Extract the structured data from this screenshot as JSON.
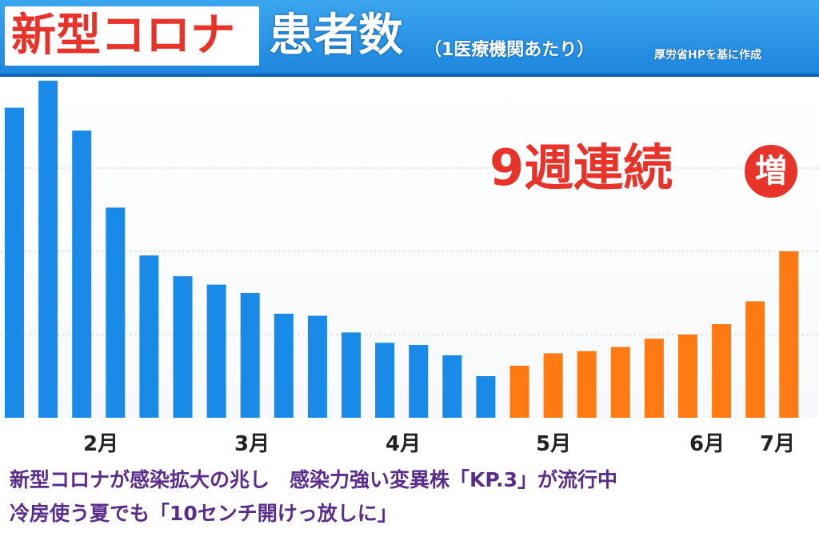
{
  "header": {
    "title_red": "新型コロナ",
    "title_white": "患者数",
    "subtitle": "（1医療機関あたり）",
    "source": "厚労省HPを基に作成"
  },
  "banner": {
    "text": "9週連続",
    "circle": "増"
  },
  "caption": {
    "line1": "新型コロナが感染拡大の兆し　感染力強い変異株「KP.3」が流行中",
    "line2": "冷房使う夏でも「10センチ開けっ放しに」"
  },
  "colors": {
    "blue": "#1a8ae8",
    "orange": "#ff7a12",
    "red": "#e8332a",
    "caption": "#5a2d8c"
  },
  "chart_data": {
    "type": "bar",
    "title": "新型コロナ患者数（1医療機関あたり）",
    "x_tick_labels": [
      "2月",
      "3月",
      "4月",
      "5月",
      "6月",
      "7月"
    ],
    "ylim": [
      0,
      16
    ],
    "grid": true,
    "series": [
      {
        "color": "#1a8ae8",
        "values": [
          14.9,
          16.2,
          13.8,
          10.1,
          7.8,
          6.8,
          6.4,
          6.0,
          5.0,
          4.9,
          4.1,
          3.6,
          3.5,
          3.0,
          2.0
        ]
      },
      {
        "color": "#ff7a12",
        "values": [
          2.5,
          3.1,
          3.2,
          3.4,
          3.8,
          4.0,
          4.5,
          5.6,
          8.0
        ]
      }
    ]
  }
}
